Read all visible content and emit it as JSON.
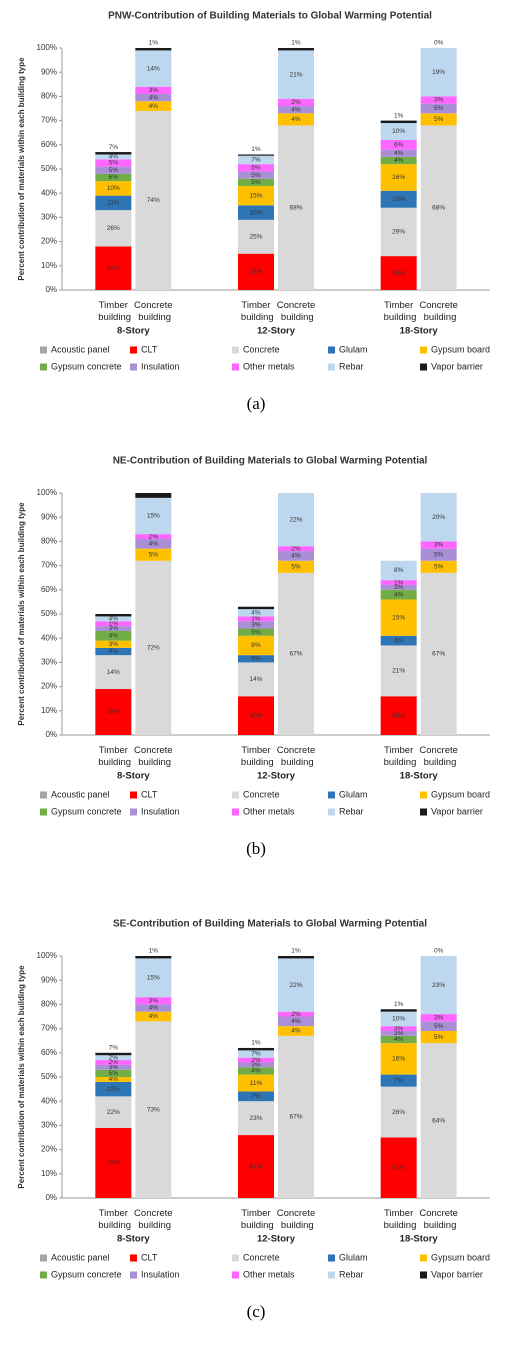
{
  "chart_data": [
    {
      "type": "stacked-bar",
      "title": "PNW-Contribution of Building Materials to Global Warming Potential",
      "caption": "(a)",
      "ylabel": "Percent contribution of materials within each building type",
      "categories": [
        "Timber building",
        "Concrete building",
        "Timber building",
        "Concrete building",
        "Timber building",
        "Concrete building"
      ],
      "groups": [
        "8-Story",
        "12-Story",
        "18-Story"
      ],
      "ylim": [
        0,
        100
      ],
      "yticks": [
        {
          "value": 0,
          "label": "0%"
        },
        {
          "value": 10,
          "label": "10%"
        },
        {
          "value": 20,
          "label": "20%"
        },
        {
          "value": 30,
          "label": "30%"
        },
        {
          "value": 40,
          "label": "40%"
        },
        {
          "value": 50,
          "label": "50%"
        },
        {
          "value": 60,
          "label": "60%"
        },
        {
          "value": 70,
          "label": "70%"
        },
        {
          "value": 80,
          "label": "80%"
        },
        {
          "value": 90,
          "label": "90%"
        },
        {
          "value": 100,
          "label": "100%"
        }
      ],
      "series": [
        {
          "name": "Acoustic panel",
          "color": "#a6a6a6",
          "values": [
            0,
            0,
            0,
            0,
            0,
            0
          ]
        },
        {
          "name": "CLT",
          "color": "#ff0000",
          "values": [
            18,
            0,
            15,
            0,
            14,
            0
          ],
          "share_labels": [
            "32%",
            null,
            "27%",
            null,
            "20%",
            null
          ]
        },
        {
          "name": "Concrete",
          "color": "#d9d9d9",
          "values": [
            15,
            74,
            14,
            68,
            20,
            68
          ],
          "share_labels": [
            "26%",
            "74%",
            "25%",
            "68%",
            "29%",
            "68%"
          ]
        },
        {
          "name": "Glulam",
          "color": "#2e75b6",
          "values": [
            6,
            0,
            6,
            0,
            7,
            0
          ],
          "share_labels": [
            "11%",
            null,
            "10%",
            null,
            "10%",
            null
          ]
        },
        {
          "name": "Gypsum board",
          "color": "#ffc000",
          "values": [
            6,
            4,
            8,
            5,
            11,
            5
          ],
          "share_labels": [
            "10%",
            "4%",
            "15%",
            "4%",
            "16%",
            "5%"
          ]
        },
        {
          "name": "Gypsum concrete",
          "color": "#70ad47",
          "values": [
            3,
            0,
            3,
            0,
            3,
            0
          ],
          "share_labels": [
            "6%",
            null,
            "5%",
            null,
            "4%",
            null
          ]
        },
        {
          "name": "Insulation",
          "color": "#a98fd6",
          "values": [
            3,
            3,
            3,
            3,
            3,
            4
          ],
          "share_labels": [
            "5%",
            "4%",
            "5%",
            "4%",
            "4%",
            "5%"
          ]
        },
        {
          "name": "Other metals",
          "color": "#ff66ff",
          "values": [
            3,
            3,
            3,
            3,
            4,
            3
          ],
          "share_labels": [
            "5%",
            "3%",
            "5%",
            "2%",
            "6%",
            "3%"
          ]
        },
        {
          "name": "Rebar",
          "color": "#bdd7ee",
          "values": [
            2,
            15,
            3.5,
            20,
            7,
            20
          ],
          "share_labels": [
            "4%",
            "14%",
            "7%",
            "21%",
            "10%",
            "19%"
          ]
        },
        {
          "name": "Vapor barrier",
          "color": "#1a1a1a",
          "values": [
            1,
            1,
            0.5,
            1,
            1,
            0
          ],
          "share_labels": [
            "7%",
            "1%",
            "1%",
            "1%",
            "1%",
            "0%"
          ]
        }
      ]
    },
    {
      "type": "stacked-bar",
      "title": "NE-Contribution of Building Materials to Global Warming Potential",
      "caption": "(b)",
      "ylabel": "Percent contribution of materials within each building type",
      "categories": [
        "Timber building",
        "Concrete building",
        "Timber building",
        "Concrete building",
        "Timber building",
        "Concrete building"
      ],
      "groups": [
        "8-Story",
        "12-Story",
        "18-Story"
      ],
      "ylim": [
        0,
        100
      ],
      "yticks": [
        {
          "value": 0,
          "label": "0%"
        },
        {
          "value": 10,
          "label": "10%"
        },
        {
          "value": 20,
          "label": "20%"
        },
        {
          "value": 30,
          "label": "30%"
        },
        {
          "value": 40,
          "label": "40%"
        },
        {
          "value": 50,
          "label": "50%"
        },
        {
          "value": 60,
          "label": "60%"
        },
        {
          "value": 70,
          "label": "70%"
        },
        {
          "value": 80,
          "label": "80%"
        },
        {
          "value": 90,
          "label": "90%"
        },
        {
          "value": 100,
          "label": "100%"
        }
      ],
      "series": [
        {
          "name": "Acoustic panel",
          "color": "#a6a6a6",
          "values": [
            0,
            0,
            0,
            0,
            0,
            0
          ]
        },
        {
          "name": "CLT",
          "color": "#ff0000",
          "values": [
            19,
            0,
            16,
            0,
            16,
            0
          ],
          "share_labels": [
            "38%",
            null,
            "30%",
            null,
            "30%",
            null
          ]
        },
        {
          "name": "Concrete",
          "color": "#d9d9d9",
          "values": [
            14,
            72,
            14,
            67,
            21,
            67
          ],
          "share_labels": [
            "14%",
            "72%",
            "14%",
            "67%",
            "21%",
            "67%"
          ]
        },
        {
          "name": "Glulam",
          "color": "#2e75b6",
          "values": [
            3,
            0,
            3,
            0,
            4,
            0
          ],
          "share_labels": [
            "4%",
            null,
            "5%",
            null,
            "4%",
            null
          ]
        },
        {
          "name": "Gypsum board",
          "color": "#ffc000",
          "values": [
            3,
            5,
            8,
            5,
            15,
            5
          ],
          "share_labels": [
            "3%",
            "5%",
            "8%",
            "5%",
            "15%",
            "5%"
          ]
        },
        {
          "name": "Gypsum concrete",
          "color": "#70ad47",
          "values": [
            4,
            0,
            3,
            0,
            4,
            0
          ],
          "share_labels": [
            "4%",
            null,
            "5%",
            null,
            "4%",
            null
          ]
        },
        {
          "name": "Insulation",
          "color": "#a98fd6",
          "values": [
            2,
            4,
            3,
            4,
            2,
            5
          ],
          "share_labels": [
            "3%",
            "4%",
            "3%",
            "4%",
            "3%",
            "5%"
          ]
        },
        {
          "name": "Other metals",
          "color": "#ff66ff",
          "values": [
            2,
            2,
            2,
            2,
            2,
            3
          ],
          "share_labels": [
            "1%",
            "2%",
            "1%",
            "2%",
            "1%",
            "3%"
          ]
        },
        {
          "name": "Rebar",
          "color": "#bdd7ee",
          "values": [
            2,
            15,
            3,
            22,
            8,
            20
          ],
          "share_labels": [
            "4%",
            "15%",
            "4%",
            "22%",
            "8%",
            "20%"
          ]
        },
        {
          "name": "Vapor barrier",
          "color": "#1a1a1a",
          "values": [
            1,
            2,
            1,
            0,
            0,
            0
          ]
        }
      ]
    },
    {
      "type": "stacked-bar",
      "title": "SE-Contribution of Building Materials to Global Warming Potential",
      "caption": "(c)",
      "ylabel": "Percent contribution of materials within each building type",
      "categories": [
        "Timber building",
        "Concrete building",
        "Timber building",
        "Concrete building",
        "Timber building",
        "Concrete building"
      ],
      "groups": [
        "8-Story",
        "12-Story",
        "18-Story"
      ],
      "ylim": [
        0,
        100
      ],
      "yticks": [
        {
          "value": 0,
          "label": "0%"
        },
        {
          "value": 10,
          "label": "10%"
        },
        {
          "value": 20,
          "label": "20%"
        },
        {
          "value": 30,
          "label": "30%"
        },
        {
          "value": 40,
          "label": "40%"
        },
        {
          "value": 50,
          "label": "50%"
        },
        {
          "value": 60,
          "label": "60%"
        },
        {
          "value": 70,
          "label": "70%"
        },
        {
          "value": 80,
          "label": "80%"
        },
        {
          "value": 90,
          "label": "90%"
        },
        {
          "value": 100,
          "label": "100%"
        }
      ],
      "series": [
        {
          "name": "Acoustic panel",
          "color": "#a6a6a6",
          "values": [
            0,
            0,
            0,
            0,
            0,
            0
          ]
        },
        {
          "name": "CLT",
          "color": "#ff0000",
          "values": [
            29,
            0,
            26,
            0,
            25,
            0
          ],
          "share_labels": [
            "49%",
            null,
            "41%",
            null,
            "31%",
            null
          ]
        },
        {
          "name": "Concrete",
          "color": "#d9d9d9",
          "values": [
            13,
            73,
            14,
            67,
            21,
            64
          ],
          "share_labels": [
            "22%",
            "73%",
            "23%",
            "67%",
            "26%",
            "64%"
          ]
        },
        {
          "name": "Glulam",
          "color": "#2e75b6",
          "values": [
            6,
            0,
            4,
            0,
            5,
            0
          ],
          "share_labels": [
            "10%",
            null,
            "7%",
            null,
            "7%",
            null
          ]
        },
        {
          "name": "Gypsum board",
          "color": "#ffc000",
          "values": [
            2,
            4,
            7,
            4,
            13,
            5
          ],
          "share_labels": [
            "4%",
            "4%",
            "11%",
            "4%",
            "16%",
            "5%"
          ]
        },
        {
          "name": "Gypsum concrete",
          "color": "#70ad47",
          "values": [
            3,
            0,
            3,
            0,
            3,
            0
          ],
          "share_labels": [
            "5%",
            null,
            "4%",
            null,
            "4%",
            null
          ]
        },
        {
          "name": "Insulation",
          "color": "#a98fd6",
          "values": [
            2,
            3,
            2,
            4,
            2,
            4
          ],
          "share_labels": [
            "3%",
            "4%",
            "3%",
            "4%",
            "3%",
            "5%"
          ]
        },
        {
          "name": "Other metals",
          "color": "#ff66ff",
          "values": [
            2,
            3,
            2,
            2,
            2,
            3
          ],
          "share_labels": [
            "2%",
            "3%",
            "2%",
            "2%",
            "3%",
            "3%"
          ]
        },
        {
          "name": "Rebar",
          "color": "#bdd7ee",
          "values": [
            2,
            16,
            3,
            22,
            6,
            24
          ],
          "share_labels": [
            "2%",
            "15%",
            "7%",
            "22%",
            "10%",
            "23%"
          ]
        },
        {
          "name": "Vapor barrier",
          "color": "#1a1a1a",
          "values": [
            1,
            1,
            1,
            1,
            1,
            0
          ],
          "share_labels": [
            "7%",
            "1%",
            "1%",
            "1%",
            "1%",
            "0%"
          ]
        }
      ]
    }
  ]
}
